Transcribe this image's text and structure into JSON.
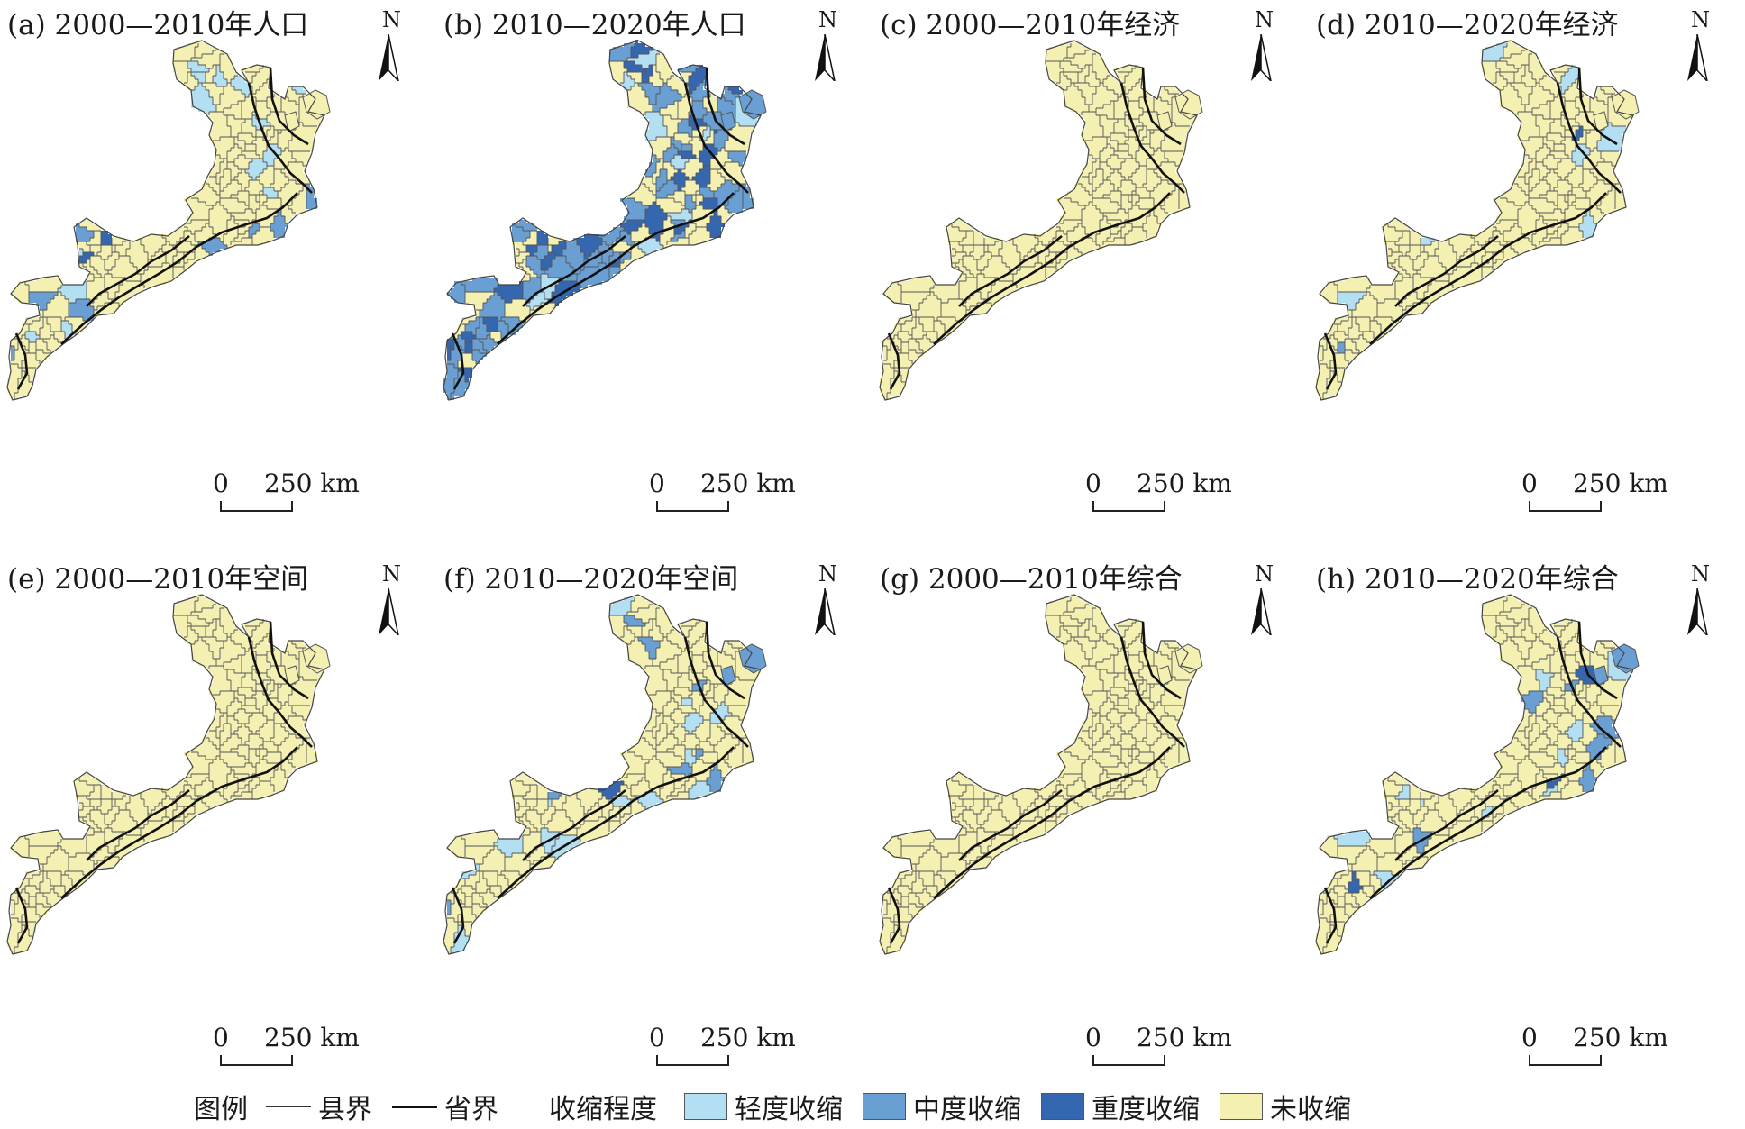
{
  "legend": {
    "title": "图例",
    "county_boundary": "县界",
    "province_boundary": "省界",
    "degree_title": "收缩程度",
    "classes": [
      {
        "key": "light",
        "label": "轻度收缩",
        "color": "#b3dff2"
      },
      {
        "key": "moderate",
        "label": "中度收缩",
        "color": "#6a9fd4"
      },
      {
        "key": "severe",
        "label": "重度收缩",
        "color": "#3566b0"
      },
      {
        "key": "none",
        "label": "未收缩",
        "color": "#f4f0b2"
      }
    ]
  },
  "north_label": "N",
  "scale": {
    "zero": "0",
    "distance": "250 km"
  },
  "panels": [
    {
      "title": "(a) 2000—2010年人口",
      "shrink": {
        "light": 14,
        "moderate": 8,
        "severe": 2
      }
    },
    {
      "title": "(b) 2010—2020年人口",
      "shrink": {
        "light": 10,
        "moderate": 55,
        "severe": 30
      }
    },
    {
      "title": "(c) 2000—2010年经济",
      "shrink": {
        "light": 0,
        "moderate": 0,
        "severe": 0
      }
    },
    {
      "title": "(d) 2010—2020年经济",
      "shrink": {
        "light": 7,
        "moderate": 1,
        "severe": 1
      }
    },
    {
      "title": "(e) 2000—2010年空间",
      "shrink": {
        "light": 0,
        "moderate": 0,
        "severe": 0
      }
    },
    {
      "title": "(f) 2010—2020年空间",
      "shrink": {
        "light": 14,
        "moderate": 8,
        "severe": 1
      }
    },
    {
      "title": "(g) 2000—2010年综合",
      "shrink": {
        "light": 0,
        "moderate": 0,
        "severe": 0
      }
    },
    {
      "title": "(h) 2010—2020年综合",
      "shrink": {
        "light": 10,
        "moderate": 6,
        "severe": 3
      }
    }
  ]
}
